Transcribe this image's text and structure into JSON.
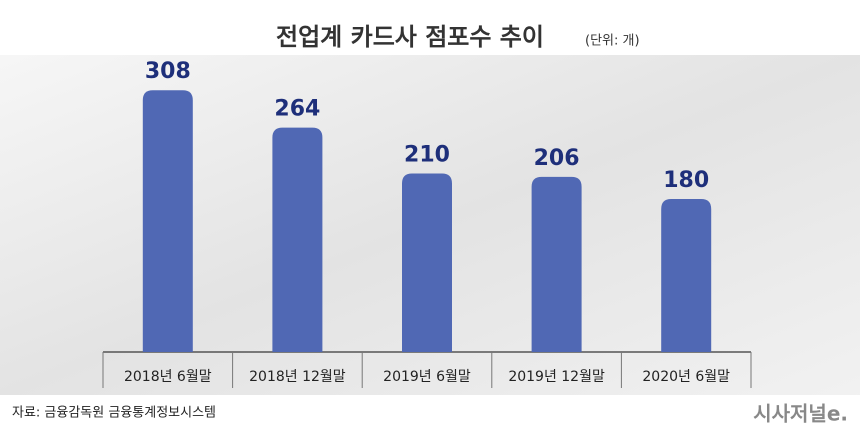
{
  "chart_data": {
    "type": "bar",
    "title": "전업계 카드사 점포수 추이",
    "unit_note": "(단위: 개)",
    "categories": [
      "2018년 6월말",
      "2018년 12월말",
      "2019년 6월말",
      "2019년 12월말",
      "2020년 6월말"
    ],
    "values": [
      308,
      264,
      210,
      206,
      180
    ],
    "color": "#5068b4",
    "ylim": [
      0,
      320
    ],
    "source": "자료: 금융감독원 금융통계정보시스템",
    "logo": "시사저널e."
  }
}
